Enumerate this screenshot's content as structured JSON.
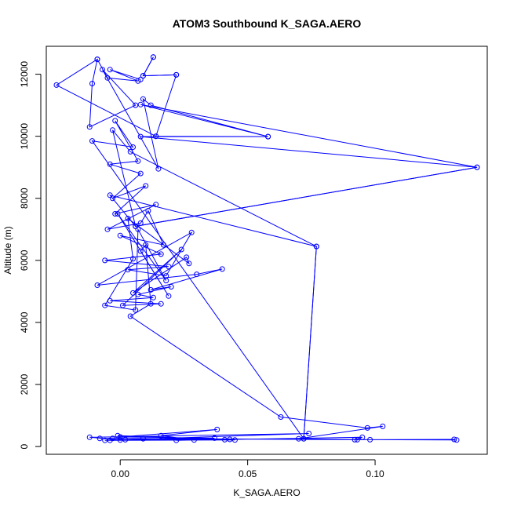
{
  "chart_data": {
    "type": "line",
    "title": "ATOM3 Southbound K_SAGA.AERO",
    "xlabel": "K_SAGA.AERO",
    "ylabel": "Altitude (m)",
    "xlim": [
      -0.029,
      0.144
    ],
    "ylim": [
      -250,
      12900
    ],
    "x_ticks": [
      0.0,
      0.05,
      0.1
    ],
    "x_tick_labels": [
      "0.00",
      "0.05",
      "0.10"
    ],
    "y_ticks": [
      0,
      2000,
      4000,
      6000,
      8000,
      10000,
      12000
    ],
    "y_tick_labels": [
      "0",
      "2000",
      "4000",
      "6000",
      "8000",
      "10000",
      "12000"
    ],
    "grid": false,
    "series_color": "#0000ff",
    "series": [
      {
        "x": [
          0.013,
          0.009,
          0.022,
          0.014,
          -0.025,
          -0.009,
          -0.011,
          -0.012,
          0.006,
          -0.007,
          0.015,
          0.009,
          0.012,
          0.058,
          0.008,
          0.14,
          0.006,
          -0.003,
          0.004,
          0.077,
          0.072,
          -0.011,
          0.005,
          -0.002,
          0.007,
          -0.004,
          0.008,
          -0.003,
          0.01,
          -0.002,
          0.014,
          -0.005,
          0.008,
          0.011,
          0.017,
          0.0,
          0.016,
          -0.006,
          0.019,
          0.003,
          0.018,
          0.028,
          -0.009,
          0.03,
          0.04,
          0.012,
          0.02,
          0.007,
          0.013,
          -0.004,
          0.016,
          0.001,
          0.024,
          0.005,
          0.026,
          0.027,
          0.003,
          0.005,
          -0.006,
          0.006,
          0.007,
          0.018,
          -0.001,
          0.019,
          0.008,
          0.01,
          0.012,
          0.004,
          0.063,
          0.097,
          0.103,
          0.07,
          0.098,
          0.131,
          0.093,
          -0.003,
          0.132,
          -0.008,
          0.0,
          -0.012,
          0.074,
          -0.006,
          0.002,
          0.045,
          -0.004,
          0.041,
          -0.001,
          0.043,
          0.009,
          0.037,
          0.0,
          0.038,
          0.016,
          0.029,
          0.022,
          0.095,
          0.092
        ],
        "y": [
          12550,
          11950,
          11980,
          10000,
          11650,
          12480,
          11700,
          10300,
          11000,
          12150,
          8950,
          11200,
          11000,
          9990,
          11020,
          9000,
          7100,
          10200,
          9500,
          6450,
          250,
          9850,
          9650,
          10500,
          9200,
          9100,
          8800,
          8000,
          8400,
          7500,
          7800,
          7000,
          7200,
          7600,
          6500,
          6800,
          6200,
          6000,
          5800,
          5700,
          5500,
          6900,
          5200,
          5550,
          5720,
          5050,
          5150,
          4900,
          4800,
          4700,
          4600,
          4550,
          6350,
          4950,
          6100,
          5900,
          7350,
          6050,
          4550,
          4400,
          7000,
          5350,
          7500,
          4850,
          6300,
          6500,
          4600,
          4200,
          950,
          600,
          650,
          250,
          220,
          230,
          220,
          260,
          210,
          260,
          210,
          300,
          420,
          200,
          220,
          210,
          200,
          220,
          350,
          230,
          250,
          270,
          310,
          550,
          350,
          210,
          200,
          300,
          220
        ]
      }
    ],
    "segments": [
      {
        "x": [
          0.013,
          0.009,
          0.022
        ],
        "y": [
          12550,
          11950,
          11980
        ]
      },
      {
        "x": [
          -0.009,
          -0.005,
          0.007,
          -0.004,
          0.008
        ],
        "y": [
          12480,
          11880,
          11780,
          12150,
          11830
        ]
      },
      {
        "x": [
          0.014,
          0.058,
          0.008,
          0.14,
          0.006,
          -0.004,
          0.077,
          0.072
        ],
        "y": [
          10000,
          9990,
          9990,
          9000,
          7100,
          8100,
          6450,
          250
        ]
      }
    ]
  }
}
